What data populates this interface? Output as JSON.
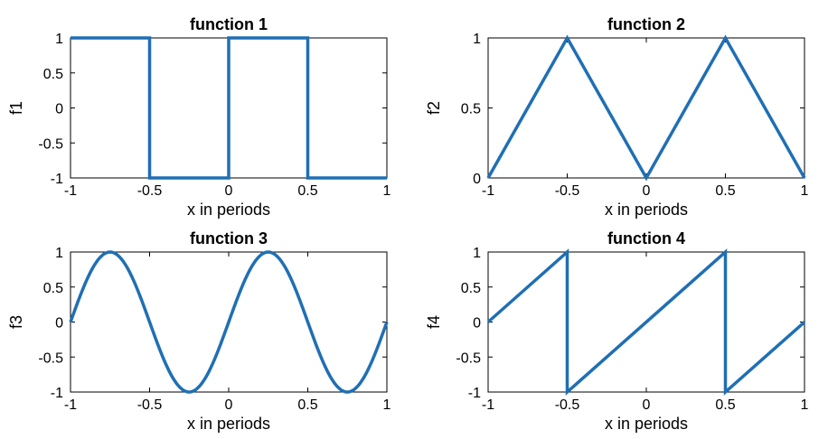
{
  "chart_data": [
    {
      "type": "line",
      "title": "function 1",
      "xlabel": "x in periods",
      "ylabel": "f1",
      "xlim": [
        -1,
        1
      ],
      "ylim": [
        -1,
        1
      ],
      "xticks": [
        -1,
        -0.5,
        0,
        0.5,
        1
      ],
      "xtick_labels": [
        "-1",
        "-0.5",
        "0",
        "0.5",
        "1"
      ],
      "yticks": [
        -1,
        -0.5,
        0,
        0.5,
        1
      ],
      "ytick_labels": [
        "-1",
        "-0.5",
        "0",
        "0.5",
        "1"
      ],
      "series": [
        {
          "color": "#1f6fb4",
          "x": [
            -1,
            -0.5,
            -0.5,
            0,
            0,
            0.5,
            0.5,
            1
          ],
          "y": [
            1,
            1,
            -1,
            -1,
            1,
            1,
            -1,
            -1
          ]
        }
      ]
    },
    {
      "type": "line",
      "title": "function 2",
      "xlabel": "x in periods",
      "ylabel": "f2",
      "xlim": [
        -1,
        1
      ],
      "ylim": [
        0,
        1
      ],
      "xticks": [
        -1,
        -0.5,
        0,
        0.5,
        1
      ],
      "xtick_labels": [
        "-1",
        "-0.5",
        "0",
        "0.5",
        "1"
      ],
      "yticks": [
        0,
        0.5,
        1
      ],
      "ytick_labels": [
        "0",
        "0.5",
        "1"
      ],
      "series": [
        {
          "color": "#1f6fb4",
          "x": [
            -1,
            -0.5,
            0,
            0.5,
            1
          ],
          "y": [
            0,
            1,
            0,
            1,
            0
          ]
        }
      ]
    },
    {
      "type": "line",
      "title": "function 3",
      "xlabel": "x in periods",
      "ylabel": "f3",
      "xlim": [
        -1,
        1
      ],
      "ylim": [
        -1,
        1
      ],
      "xticks": [
        -1,
        -0.5,
        0,
        0.5,
        1
      ],
      "xtick_labels": [
        "-1",
        "-0.5",
        "0",
        "0.5",
        "1"
      ],
      "yticks": [
        -1,
        -0.5,
        0,
        0.5,
        1
      ],
      "ytick_labels": [
        "-1",
        "-0.5",
        "0",
        "0.5",
        "1"
      ],
      "series": [
        {
          "color": "#1f6fb4",
          "x": [
            -1,
            -0.875,
            -0.75,
            -0.625,
            -0.5,
            -0.375,
            -0.25,
            -0.125,
            0,
            0.125,
            0.25,
            0.375,
            0.5,
            0.625,
            0.75,
            0.875,
            1
          ],
          "y": [
            0,
            0.71,
            1,
            0.71,
            0,
            -0.71,
            -1,
            -0.71,
            0,
            0.71,
            1,
            0.71,
            0,
            -0.71,
            -1,
            -0.71,
            0
          ],
          "interpolation": "sine"
        }
      ]
    },
    {
      "type": "line",
      "title": "function 4",
      "xlabel": "x in periods",
      "ylabel": "f4",
      "xlim": [
        -1,
        1
      ],
      "ylim": [
        -1,
        1
      ],
      "xticks": [
        -1,
        -0.5,
        0,
        0.5,
        1
      ],
      "xtick_labels": [
        "-1",
        "-0.5",
        "0",
        "0.5",
        "1"
      ],
      "yticks": [
        -1,
        -0.5,
        0,
        0.5,
        1
      ],
      "ytick_labels": [
        "-1",
        "-0.5",
        "0",
        "0.5",
        "1"
      ],
      "series": [
        {
          "color": "#1f6fb4",
          "x": [
            -1,
            -0.5,
            -0.5,
            0.5,
            0.5,
            1
          ],
          "y": [
            0,
            1,
            -1,
            1,
            -1,
            0
          ]
        }
      ]
    }
  ]
}
